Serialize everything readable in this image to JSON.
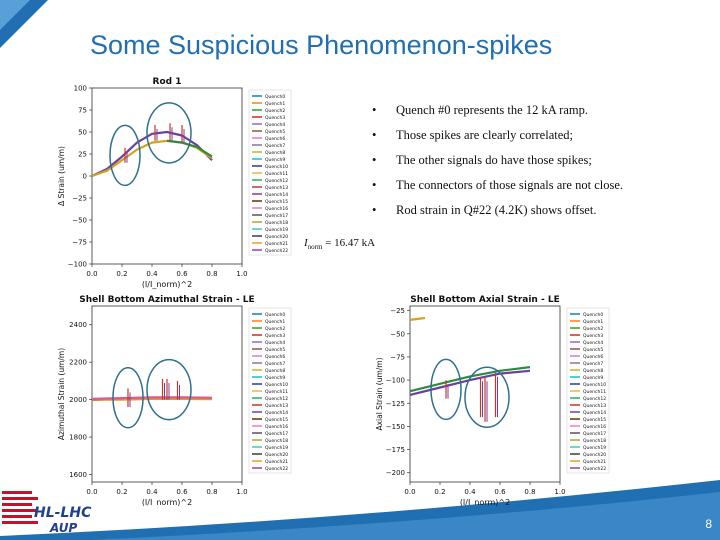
{
  "slide": {
    "title": "Some Suspicious Phenomenon-spikes",
    "page_number": "8",
    "bullets": [
      "Quench #0 represents the 12 kA ramp.",
      "Those spikes are clearly correlated;",
      "The other signals do have those spikes;",
      "The connectors of those signals are not close.",
      "Rod strain in Q#22 (4.2K) shows offset."
    ],
    "inorm_prefix": "I",
    "inorm_sub": "norm",
    "inorm_value": " = 16.47 kA",
    "logo_text_top": "HL-LHC",
    "logo_text_bottom": "AUP",
    "accent_color": "#1f6fb2"
  },
  "chart_data": [
    {
      "type": "line",
      "title": "Rod 1",
      "xlabel": "(I/I_norm)^2",
      "ylabel": "Δ Strain (um/m)",
      "xlim": [
        0.0,
        1.0
      ],
      "ylim": [
        -100,
        100
      ],
      "xticks": [
        "0.0",
        "0.2",
        "0.4",
        "0.6",
        "0.8",
        "1.0"
      ],
      "yticks": [
        "100",
        "75",
        "50",
        "25",
        "0",
        "−25",
        "−50",
        "−75",
        "−100"
      ],
      "legend": [
        "Quench0",
        "Quench1",
        "Quench2",
        "Quench3",
        "Quench4",
        "Quench5",
        "Quench6",
        "Quench7",
        "Quench8",
        "Quench9",
        "Quench10",
        "Quench11",
        "Quench12",
        "Quench13",
        "Quench14",
        "Quench15",
        "Quench16",
        "Quench17",
        "Quench18",
        "Quench19",
        "Quench20",
        "Quench21",
        "Quench22"
      ],
      "legend_position": "right",
      "series": [
        {
          "color": "#6b3fa0",
          "x": [
            0.0,
            0.1,
            0.2,
            0.3,
            0.4,
            0.5,
            0.6,
            0.7,
            0.8
          ],
          "y": [
            0,
            8,
            22,
            38,
            48,
            50,
            46,
            35,
            18
          ]
        },
        {
          "color": "#d6a020",
          "x": [
            0.0,
            0.1,
            0.2,
            0.3,
            0.4,
            0.5,
            0.6,
            0.7,
            0.8
          ],
          "y": [
            0,
            6,
            18,
            30,
            38,
            40,
            38,
            32,
            20
          ]
        },
        {
          "color": "#2e8b3e",
          "x": [
            0.5,
            0.6,
            0.7,
            0.8
          ],
          "y": [
            40,
            38,
            33,
            22
          ]
        }
      ],
      "spikes": [
        {
          "x": 0.22,
          "y_from": 15,
          "y_to": 32
        },
        {
          "x": 0.42,
          "y_from": 40,
          "y_to": 58
        },
        {
          "x": 0.52,
          "y_from": 40,
          "y_to": 60
        },
        {
          "x": 0.6,
          "y_from": 38,
          "y_to": 58
        }
      ]
    },
    {
      "type": "line",
      "title": "Shell Bottom Azimuthal Strain - LE",
      "xlabel": "(I/I_norm)^2",
      "ylabel": "Azimuthal Strain (um/m)",
      "xlim": [
        0.0,
        1.0
      ],
      "ylim": [
        1560,
        2500
      ],
      "xticks": [
        "0.0",
        "0.2",
        "0.4",
        "0.6",
        "0.8",
        "1.0"
      ],
      "yticks": [
        "2400",
        "2200",
        "2000",
        "1800",
        "1600"
      ],
      "legend": [
        "Quench0",
        "Quench1",
        "Quench2",
        "Quench3",
        "Quench4",
        "Quench5",
        "Quench6",
        "Quench7",
        "Quench8",
        "Quench9",
        "Quench10",
        "Quench11",
        "Quench12",
        "Quench13",
        "Quench14",
        "Quench15",
        "Quench16",
        "Quench17",
        "Quench18",
        "Quench19",
        "Quench20",
        "Quench21",
        "Quench22"
      ],
      "legend_position": "right",
      "series": [
        {
          "color": "#6b3fa0",
          "x": [
            0.0,
            0.2,
            0.4,
            0.6,
            0.8
          ],
          "y": [
            1998,
            2005,
            2008,
            2008,
            2005
          ]
        },
        {
          "color": "#d6a020",
          "x": [
            0.0,
            0.2,
            0.4,
            0.6,
            0.8
          ],
          "y": [
            2000,
            2000,
            2004,
            2004,
            2002
          ]
        },
        {
          "color": "#e0559a",
          "x": [
            0.0,
            0.2,
            0.4,
            0.6,
            0.8
          ],
          "y": [
            2004,
            2008,
            2012,
            2012,
            2010
          ]
        }
      ],
      "spikes": [
        {
          "x": 0.24,
          "y_from": 1960,
          "y_to": 2060
        },
        {
          "x": 0.47,
          "y_from": 2000,
          "y_to": 2110
        },
        {
          "x": 0.5,
          "y_from": 2000,
          "y_to": 2110
        },
        {
          "x": 0.57,
          "y_from": 2000,
          "y_to": 2100
        }
      ]
    },
    {
      "type": "line",
      "title": "Shell Bottom Axial Strain - LE",
      "xlabel": "(I/I_norm)^2",
      "ylabel": "Axial Strain (um/m)",
      "xlim": [
        0.0,
        1.0
      ],
      "ylim": [
        -210,
        -20
      ],
      "xticks": [
        "0.0",
        "0.2",
        "0.4",
        "0.6",
        "0.8",
        "1.0"
      ],
      "yticks": [
        "−25",
        "−50",
        "−75",
        "−100",
        "−125",
        "−150",
        "−175",
        "−200"
      ],
      "legend": [
        "Quench0",
        "Quench1",
        "Quench2",
        "Quench3",
        "Quench4",
        "Quench5",
        "Quench6",
        "Quench7",
        "Quench8",
        "Quench9",
        "Quench10",
        "Quench11",
        "Quench12",
        "Quench13",
        "Quench14",
        "Quench15",
        "Quench16",
        "Quench17",
        "Quench18",
        "Quench19",
        "Quench20",
        "Quench21",
        "Quench22"
      ],
      "legend_position": "right",
      "series": [
        {
          "color": "#2e8b3e",
          "x": [
            0.0,
            0.2,
            0.4,
            0.6,
            0.8
          ],
          "y": [
            -112,
            -104,
            -96,
            -90,
            -86
          ]
        },
        {
          "color": "#6b3fa0",
          "x": [
            0.0,
            0.2,
            0.4,
            0.6,
            0.8
          ],
          "y": [
            -116,
            -108,
            -100,
            -93,
            -90
          ]
        },
        {
          "color": "#d6a020",
          "x": [
            0.0,
            0.1
          ],
          "y": [
            -35,
            -33
          ]
        }
      ],
      "spikes": [
        {
          "x": 0.24,
          "y_from": -120,
          "y_to": -100
        },
        {
          "x": 0.47,
          "y_from": -140,
          "y_to": -97
        },
        {
          "x": 0.5,
          "y_from": -145,
          "y_to": -97
        },
        {
          "x": 0.57,
          "y_from": -140,
          "y_to": -92
        }
      ]
    }
  ]
}
